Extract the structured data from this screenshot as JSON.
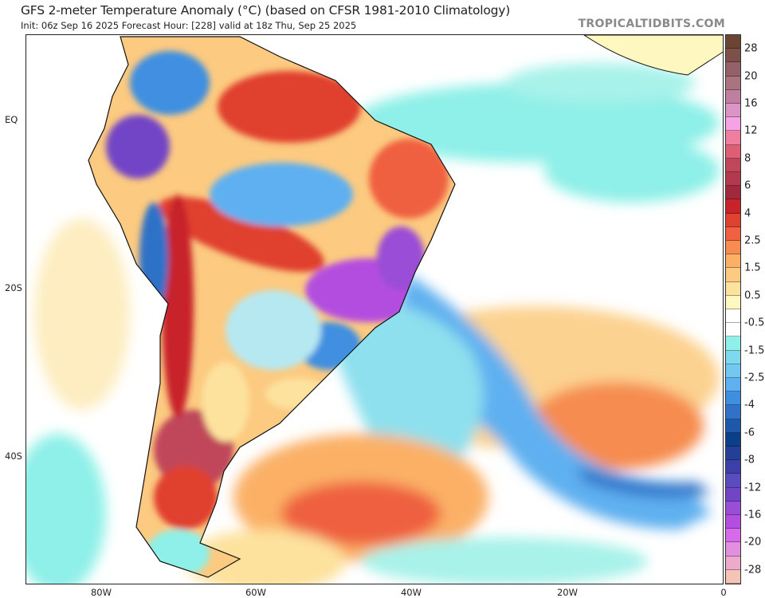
{
  "header": {
    "title": "GFS 2-meter Temperature Anomaly (°C) (based on CFSR 1981-2010 Climatology)",
    "subtitle": "Init: 06z Sep 16 2025   Forecast Hour: [228]   valid at 18z Thu, Sep 25 2025",
    "watermark": "TROPICALTIDBITS.COM"
  },
  "axes": {
    "x_ticks": [
      "80W",
      "60W",
      "40W",
      "20W",
      "0"
    ],
    "y_ticks": [
      "EQ",
      "20S",
      "40S"
    ]
  },
  "colorbar": {
    "labels": [
      "28",
      "20",
      "16",
      "12",
      "8",
      "6",
      "4",
      "2.5",
      "1.5",
      "0.5",
      "-0.5",
      "-1.5",
      "-2.5",
      "-4",
      "-6",
      "-8",
      "-12",
      "-16",
      "-20",
      "-28"
    ],
    "colors": [
      "#6b4434",
      "#7d5149",
      "#946168",
      "#a9737f",
      "#c07f9f",
      "#dc93c5",
      "#f5a3e5",
      "#ef7fa0",
      "#dc5f74",
      "#c0465a",
      "#b33a4e",
      "#a02a3c",
      "#c8222b",
      "#e0402e",
      "#ef6140",
      "#f68c50",
      "#fbb066",
      "#fcca80",
      "#fde29d",
      "#fff7c0",
      "#ffffff",
      "#ffffff",
      "#8ef0e8",
      "#7fd9ee",
      "#72c8f0",
      "#5fb0f0",
      "#3f8fe0",
      "#2f72c8",
      "#1d58aa",
      "#0b3f8a",
      "#233f96",
      "#3b3fa6",
      "#5a4bbf",
      "#7245c6",
      "#9a4ed6",
      "#b34ee0",
      "#d66aea",
      "#e38fe0",
      "#eeaacb",
      "#f6c4b4"
    ]
  }
}
